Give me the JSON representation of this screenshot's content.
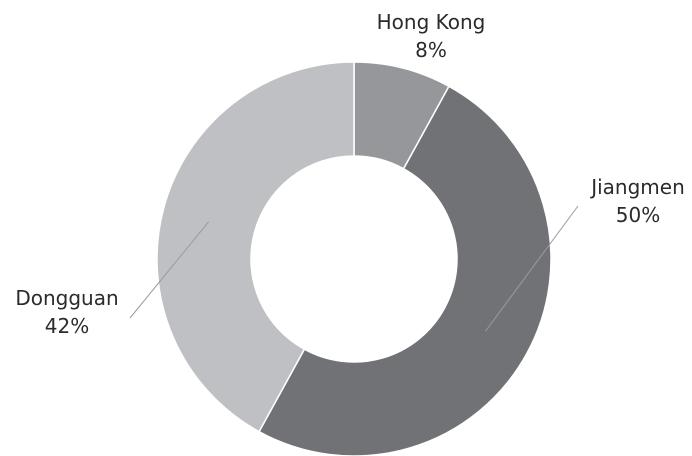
{
  "chart_data": {
    "type": "pie",
    "variant": "donut",
    "title": "",
    "slices": [
      {
        "name": "Hong Kong",
        "value": 8,
        "label": "8%",
        "color": "#96979a"
      },
      {
        "name": "Jiangmen",
        "value": 50,
        "label": "50%",
        "color": "#717276"
      },
      {
        "name": "Dongguan",
        "value": 42,
        "label": "42%",
        "color": "#bfc0c3"
      }
    ],
    "start_angle_deg": 0,
    "direction": "clockwise",
    "legend": "none"
  }
}
